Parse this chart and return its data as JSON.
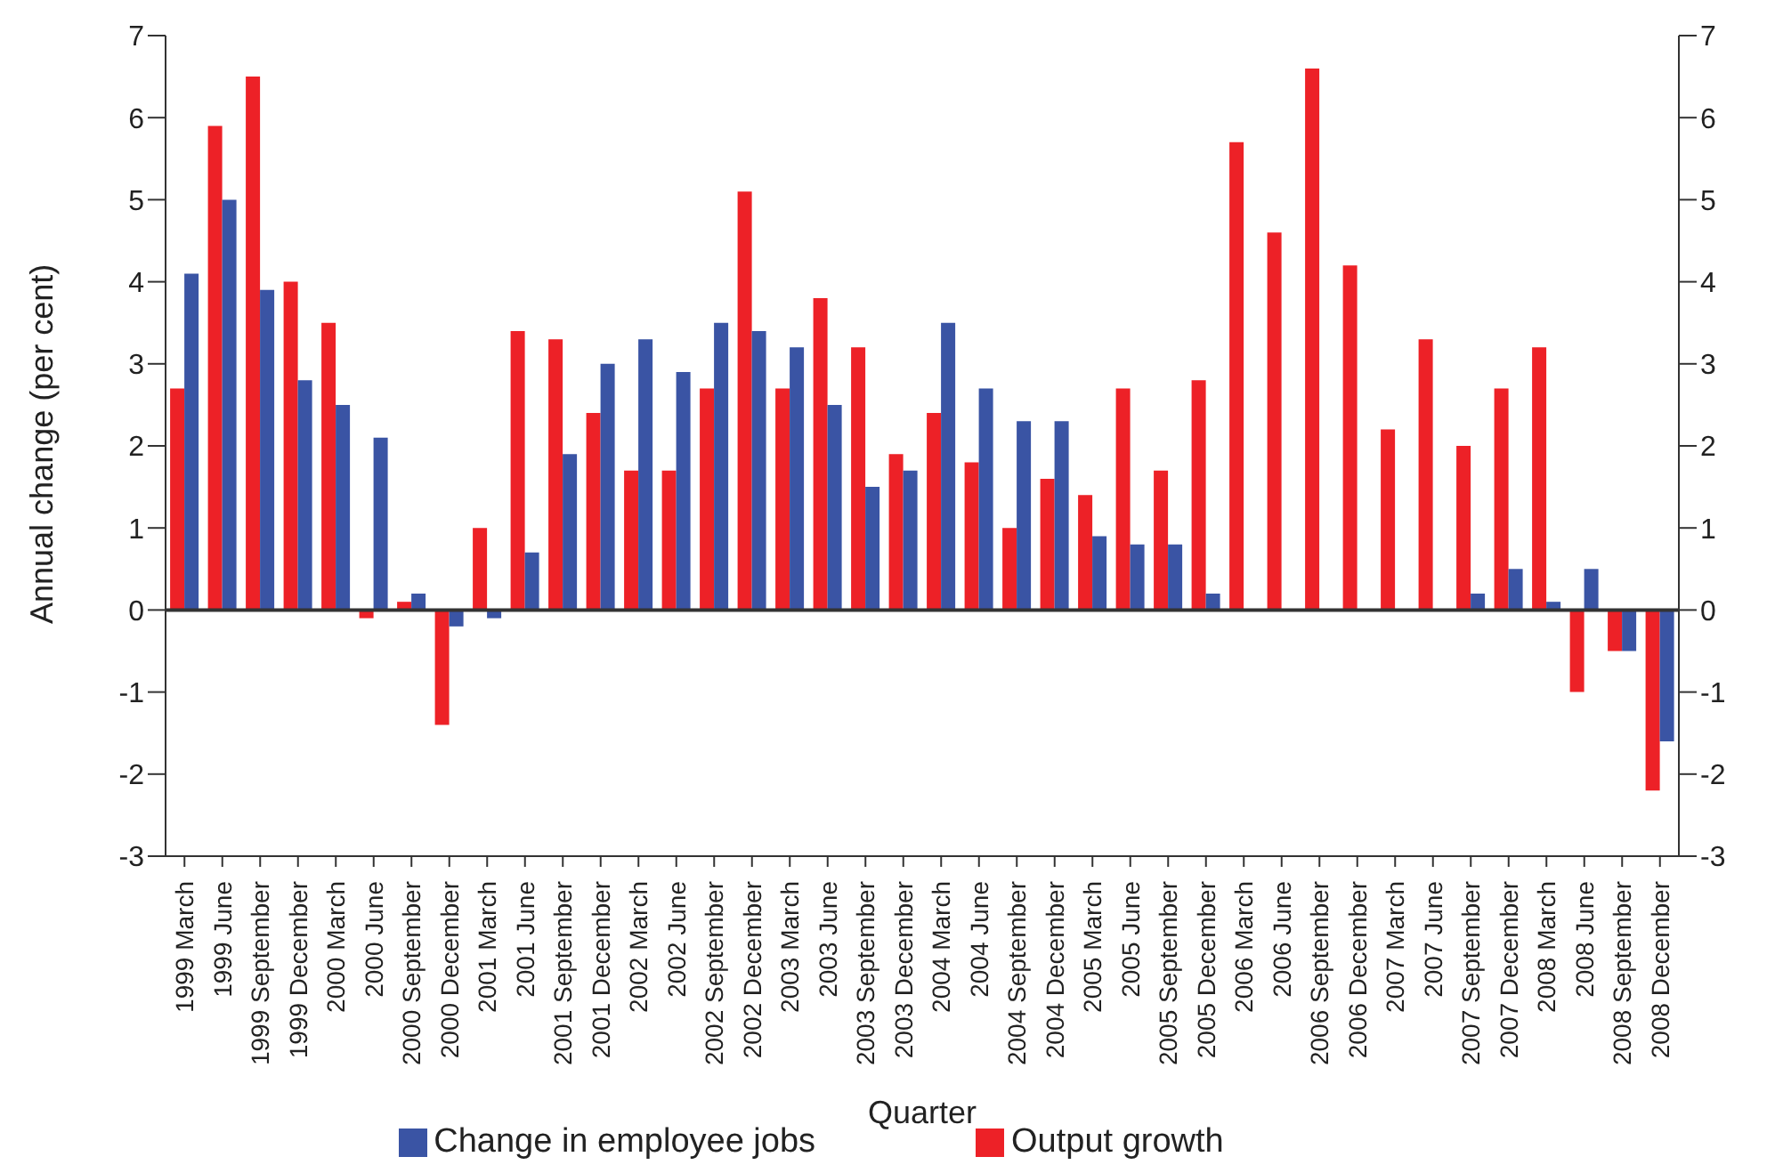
{
  "chart_data": {
    "type": "bar",
    "xlabel": "Quarter",
    "ylabel": "Annual change (per cent)",
    "categories": [
      "1999 March",
      "1999 June",
      "1999 September",
      "1999 December",
      "2000 March",
      "2000 June",
      "2000 September",
      "2000 December",
      "2001 March",
      "2001 June",
      "2001 September",
      "2001 December",
      "2002 March",
      "2002 June",
      "2002 September",
      "2002 December",
      "2003 March",
      "2003 June",
      "2003 September",
      "2003 December",
      "2004 March",
      "2004 June",
      "2004 September",
      "2004 December",
      "2005 March",
      "2005 June",
      "2005 September",
      "2005 December",
      "2006 March",
      "2006 June",
      "2006 September",
      "2006 December",
      "2007 March",
      "2007 June",
      "2007 September",
      "2007 December",
      "2008 March",
      "2008 June",
      "2008 September",
      "2008 December"
    ],
    "series": [
      {
        "name": "Output growth",
        "color": "#ed2127",
        "values": [
          2.7,
          5.9,
          6.5,
          4.0,
          3.5,
          -0.1,
          0.1,
          -1.4,
          1.0,
          3.4,
          3.3,
          2.4,
          1.7,
          1.7,
          2.7,
          5.1,
          2.7,
          3.8,
          3.2,
          1.9,
          2.4,
          1.8,
          1.0,
          1.6,
          1.4,
          2.7,
          1.7,
          2.8,
          5.7,
          4.6,
          6.6,
          4.2,
          2.2,
          3.3,
          2.0,
          2.7,
          3.2,
          -1.0,
          -0.5,
          -2.2
        ]
      },
      {
        "name": "Change in employee jobs",
        "color": "#3a54a4",
        "values": [
          4.1,
          5.0,
          3.9,
          2.8,
          2.5,
          2.1,
          0.2,
          -0.2,
          -0.1,
          0.7,
          1.9,
          3.0,
          3.3,
          2.9,
          3.5,
          3.4,
          3.2,
          2.5,
          1.5,
          1.7,
          3.5,
          2.7,
          2.3,
          2.3,
          0.9,
          0.8,
          0.8,
          0.2,
          null,
          null,
          null,
          null,
          null,
          null,
          0.2,
          0.5,
          0.1,
          0.5,
          -0.5,
          -1.6
        ]
      }
    ],
    "ylim": [
      -3,
      7
    ],
    "yticks": [
      -3,
      -2,
      -1,
      0,
      1,
      2,
      3,
      4,
      5,
      6,
      7
    ],
    "y2lim": [
      -3,
      7
    ],
    "y2ticks": [
      -3,
      -2,
      -1,
      0,
      1,
      2,
      3,
      4,
      5,
      6,
      7
    ],
    "ref_lines": [
      {
        "axis": "y",
        "value": 0,
        "color": "#333333"
      }
    ],
    "grid": false,
    "legend": "bottom"
  }
}
